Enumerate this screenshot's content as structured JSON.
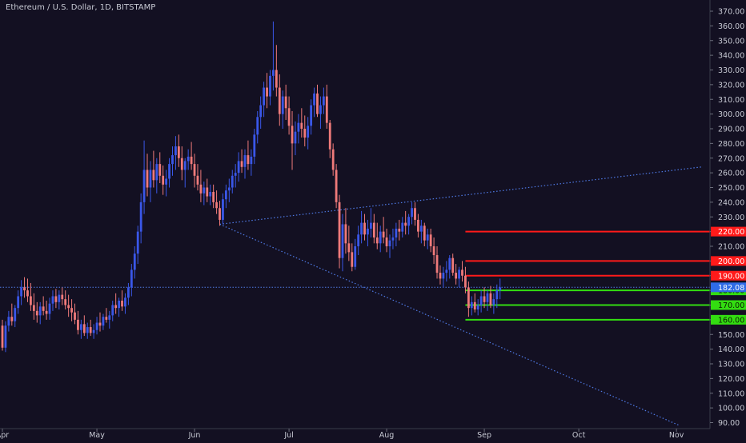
{
  "title": "Ethereum / U.S. Dollar, 1D, BITSTAMP",
  "colors": {
    "background": "#131022",
    "bull": "#3a57e8",
    "bear": "#ef7a7a",
    "resistance": "#ff1a1a",
    "support": "#33dd11",
    "trendline": "#4f7ae6",
    "price_badge": "#2e6be6",
    "axis_text": "#c8cad4"
  },
  "chart_data": {
    "type": "candlestick",
    "symbol": "ETHUSD",
    "interval": "1D",
    "exchange": "BITSTAMP",
    "ylim": [
      86,
      374
    ],
    "y_ticks": [
      90,
      100,
      110,
      120,
      130,
      140,
      150,
      160,
      170,
      180,
      190,
      200,
      210,
      220,
      230,
      240,
      250,
      260,
      270,
      280,
      290,
      300,
      310,
      320,
      330,
      340,
      350,
      360,
      370
    ],
    "x_ticks": [
      {
        "label": "Apr",
        "index": 0
      },
      {
        "label": "May",
        "index": 30
      },
      {
        "label": "Jun",
        "index": 61
      },
      {
        "label": "Jul",
        "index": 91
      },
      {
        "label": "Aug",
        "index": 122
      },
      {
        "label": "Sep",
        "index": 153
      },
      {
        "label": "Oct",
        "index": 183
      },
      {
        "label": "Nov",
        "index": 214
      }
    ],
    "last_price": {
      "label": "182.08",
      "value": 182.08
    },
    "horizontal_levels": [
      {
        "label": "220.00",
        "value": 220,
        "kind": "resistance",
        "from_index": 147
      },
      {
        "label": "200.00",
        "value": 200,
        "kind": "resistance",
        "from_index": 147
      },
      {
        "label": "190.00",
        "value": 190,
        "kind": "resistance",
        "from_index": 147
      },
      {
        "label": "180.00",
        "value": 180,
        "kind": "support",
        "from_index": 147
      },
      {
        "label": "170.00",
        "value": 170,
        "kind": "support",
        "from_index": 147
      },
      {
        "label": "160.00",
        "value": 160,
        "kind": "support",
        "from_index": 147
      }
    ],
    "trendlines": [
      {
        "from": {
          "index": 69,
          "value": 225
        },
        "to": {
          "index": 222,
          "value": 264
        }
      },
      {
        "from": {
          "index": 69,
          "value": 225
        },
        "to": {
          "index": 215,
          "value": 88
        }
      }
    ],
    "candles": [
      [
        0,
        156,
        160,
        139,
        141
      ],
      [
        1,
        141,
        159,
        138,
        156
      ],
      [
        2,
        156,
        166,
        152,
        162
      ],
      [
        3,
        162,
        171,
        156,
        159
      ],
      [
        4,
        159,
        170,
        155,
        168
      ],
      [
        5,
        168,
        180,
        164,
        176
      ],
      [
        6,
        176,
        187,
        170,
        182
      ],
      [
        7,
        182,
        189,
        175,
        180
      ],
      [
        8,
        180,
        188,
        172,
        176
      ],
      [
        9,
        176,
        185,
        166,
        170
      ],
      [
        10,
        170,
        178,
        160,
        166
      ],
      [
        11,
        166,
        172,
        158,
        163
      ],
      [
        12,
        163,
        172,
        157,
        169
      ],
      [
        13,
        169,
        176,
        163,
        166
      ],
      [
        14,
        166,
        173,
        160,
        164
      ],
      [
        15,
        164,
        175,
        160,
        171
      ],
      [
        16,
        171,
        180,
        166,
        176
      ],
      [
        17,
        176,
        181,
        168,
        172
      ],
      [
        18,
        172,
        180,
        167,
        177
      ],
      [
        19,
        177,
        182,
        170,
        174
      ],
      [
        20,
        174,
        180,
        167,
        170
      ],
      [
        21,
        170,
        177,
        162,
        168
      ],
      [
        22,
        168,
        174,
        159,
        165
      ],
      [
        23,
        165,
        171,
        157,
        160
      ],
      [
        24,
        160,
        166,
        150,
        153
      ],
      [
        25,
        153,
        160,
        147,
        157
      ],
      [
        26,
        157,
        163,
        149,
        151
      ],
      [
        27,
        151,
        158,
        147,
        155
      ],
      [
        28,
        155,
        160,
        149,
        151
      ],
      [
        29,
        151,
        157,
        147,
        153
      ],
      [
        30,
        153,
        162,
        150,
        158
      ],
      [
        31,
        158,
        165,
        152,
        156
      ],
      [
        32,
        156,
        164,
        153,
        162
      ],
      [
        33,
        162,
        168,
        158,
        160
      ],
      [
        34,
        160,
        166,
        154,
        163
      ],
      [
        35,
        163,
        173,
        159,
        170
      ],
      [
        36,
        170,
        178,
        164,
        168
      ],
      [
        37,
        168,
        175,
        162,
        173
      ],
      [
        38,
        173,
        180,
        166,
        169
      ],
      [
        39,
        169,
        178,
        164,
        175
      ],
      [
        40,
        175,
        185,
        170,
        182
      ],
      [
        41,
        182,
        198,
        176,
        194
      ],
      [
        42,
        194,
        210,
        188,
        205
      ],
      [
        43,
        205,
        224,
        198,
        220
      ],
      [
        44,
        220,
        246,
        212,
        240
      ],
      [
        45,
        240,
        282,
        232,
        262
      ],
      [
        46,
        262,
        273,
        244,
        250
      ],
      [
        47,
        250,
        268,
        240,
        262
      ],
      [
        48,
        262,
        275,
        250,
        255
      ],
      [
        49,
        255,
        270,
        246,
        266
      ],
      [
        50,
        266,
        274,
        253,
        258
      ],
      [
        51,
        258,
        265,
        245,
        252
      ],
      [
        52,
        252,
        262,
        244,
        256
      ],
      [
        53,
        256,
        270,
        250,
        266
      ],
      [
        54,
        266,
        278,
        258,
        272
      ],
      [
        55,
        272,
        285,
        262,
        278
      ],
      [
        56,
        278,
        286,
        264,
        270
      ],
      [
        57,
        270,
        278,
        255,
        262
      ],
      [
        58,
        262,
        270,
        250,
        268
      ],
      [
        59,
        268,
        276,
        262,
        271
      ],
      [
        60,
        271,
        281,
        262,
        266
      ],
      [
        61,
        266,
        273,
        250,
        258
      ],
      [
        62,
        258,
        266,
        248,
        252
      ],
      [
        63,
        252,
        262,
        240,
        246
      ],
      [
        64,
        246,
        254,
        238,
        250
      ],
      [
        65,
        250,
        256,
        240,
        244
      ],
      [
        66,
        244,
        252,
        238,
        247
      ],
      [
        67,
        247,
        252,
        236,
        240
      ],
      [
        68,
        240,
        248,
        232,
        236
      ],
      [
        69,
        236,
        241,
        224,
        228
      ],
      [
        70,
        228,
        246,
        225,
        242
      ],
      [
        71,
        242,
        252,
        236,
        248
      ],
      [
        72,
        248,
        256,
        240,
        250
      ],
      [
        73,
        250,
        262,
        246,
        258
      ],
      [
        74,
        258,
        266,
        250,
        260
      ],
      [
        75,
        260,
        274,
        254,
        268
      ],
      [
        76,
        268,
        276,
        260,
        264
      ],
      [
        77,
        264,
        276,
        256,
        272
      ],
      [
        78,
        272,
        282,
        262,
        266
      ],
      [
        79,
        266,
        276,
        258,
        271
      ],
      [
        80,
        271,
        290,
        266,
        286
      ],
      [
        81,
        286,
        302,
        280,
        298
      ],
      [
        82,
        298,
        312,
        290,
        306
      ],
      [
        83,
        306,
        322,
        298,
        318
      ],
      [
        84,
        318,
        328,
        304,
        312
      ],
      [
        85,
        312,
        330,
        306,
        326
      ],
      [
        86,
        326,
        363,
        316,
        330
      ],
      [
        87,
        330,
        347,
        312,
        318
      ],
      [
        88,
        318,
        327,
        292,
        300
      ],
      [
        89,
        300,
        316,
        290,
        312
      ],
      [
        90,
        312,
        320,
        296,
        304
      ],
      [
        91,
        304,
        312,
        286,
        292
      ],
      [
        92,
        292,
        302,
        262,
        280
      ],
      [
        93,
        280,
        295,
        272,
        288
      ],
      [
        94,
        288,
        300,
        280,
        294
      ],
      [
        95,
        294,
        304,
        284,
        290
      ],
      [
        96,
        290,
        299,
        278,
        284
      ],
      [
        97,
        284,
        298,
        276,
        292
      ],
      [
        98,
        292,
        310,
        286,
        306
      ],
      [
        99,
        306,
        318,
        298,
        314
      ],
      [
        100,
        314,
        320,
        298,
        300
      ],
      [
        101,
        300,
        312,
        290,
        306
      ],
      [
        102,
        306,
        318,
        300,
        312
      ],
      [
        103,
        312,
        320,
        290,
        294
      ],
      [
        104,
        294,
        296,
        270,
        276
      ],
      [
        105,
        276,
        280,
        258,
        262
      ],
      [
        106,
        262,
        266,
        236,
        240
      ],
      [
        107,
        240,
        245,
        195,
        202
      ],
      [
        108,
        202,
        232,
        193,
        225
      ],
      [
        109,
        225,
        236,
        205,
        212
      ],
      [
        110,
        212,
        224,
        200,
        206
      ],
      [
        111,
        206,
        212,
        193,
        196
      ],
      [
        112,
        196,
        215,
        194,
        210
      ],
      [
        113,
        210,
        224,
        204,
        218
      ],
      [
        114,
        218,
        234,
        212,
        226
      ],
      [
        115,
        226,
        232,
        214,
        218
      ],
      [
        116,
        218,
        228,
        210,
        222
      ],
      [
        117,
        222,
        236,
        216,
        226
      ],
      [
        118,
        226,
        232,
        212,
        216
      ],
      [
        119,
        216,
        226,
        208,
        212
      ],
      [
        120,
        212,
        224,
        206,
        220
      ],
      [
        121,
        220,
        230,
        212,
        216
      ],
      [
        122,
        216,
        222,
        206,
        210
      ],
      [
        123,
        210,
        218,
        202,
        214
      ],
      [
        124,
        214,
        222,
        208,
        216
      ],
      [
        125,
        216,
        226,
        210,
        222
      ],
      [
        126,
        222,
        228,
        214,
        220
      ],
      [
        127,
        220,
        230,
        216,
        226
      ],
      [
        128,
        226,
        234,
        218,
        224
      ],
      [
        129,
        224,
        232,
        218,
        230
      ],
      [
        130,
        230,
        240,
        225,
        236
      ],
      [
        131,
        236,
        240,
        224,
        228
      ],
      [
        132,
        228,
        232,
        216,
        220
      ],
      [
        133,
        220,
        228,
        212,
        224
      ],
      [
        134,
        224,
        226,
        210,
        214
      ],
      [
        135,
        214,
        222,
        208,
        218
      ],
      [
        136,
        218,
        222,
        206,
        210
      ],
      [
        137,
        210,
        216,
        198,
        204
      ],
      [
        138,
        204,
        210,
        188,
        192
      ],
      [
        139,
        192,
        197,
        184,
        188
      ],
      [
        140,
        188,
        196,
        182,
        192
      ],
      [
        141,
        192,
        200,
        186,
        194
      ],
      [
        142,
        194,
        204,
        188,
        202
      ],
      [
        143,
        202,
        205,
        190,
        192
      ],
      [
        144,
        192,
        198,
        184,
        188
      ],
      [
        145,
        188,
        196,
        182,
        194
      ],
      [
        146,
        194,
        200,
        186,
        190
      ],
      [
        147,
        190,
        196,
        178,
        182
      ],
      [
        148,
        182,
        186,
        162,
        168
      ],
      [
        149,
        168,
        176,
        163,
        172
      ],
      [
        150,
        172,
        178,
        165,
        167
      ],
      [
        151,
        167,
        174,
        163,
        170
      ],
      [
        152,
        170,
        180,
        165,
        176
      ],
      [
        153,
        176,
        182,
        168,
        172
      ],
      [
        154,
        172,
        180,
        166,
        178
      ],
      [
        155,
        178,
        183,
        168,
        170
      ],
      [
        156,
        170,
        178,
        164,
        174
      ],
      [
        157,
        174,
        184,
        168,
        180
      ],
      [
        158,
        180,
        188,
        174,
        182
      ]
    ]
  }
}
